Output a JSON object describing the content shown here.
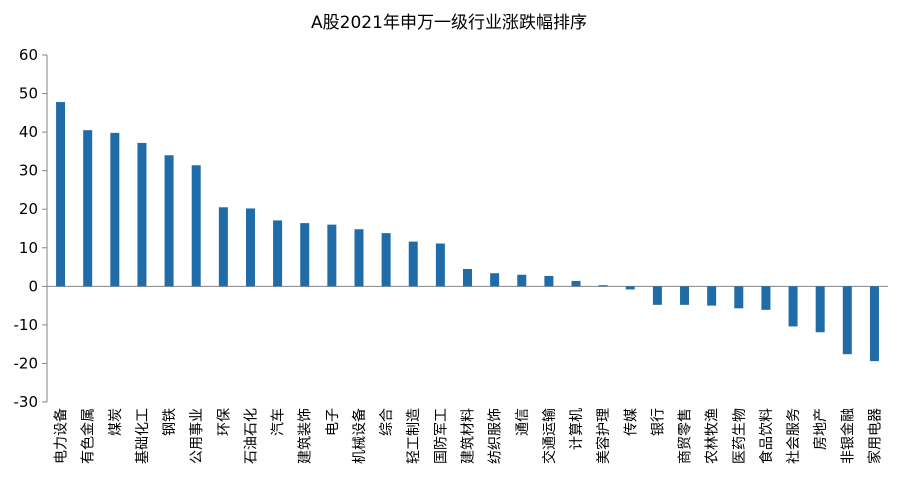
{
  "chart_data": {
    "type": "bar",
    "title": "A股2021年申万一级行业涨跌幅排序",
    "xlabel": "",
    "ylabel": "",
    "ylim": [
      -30,
      60
    ],
    "yticks": [
      60,
      50,
      40,
      30,
      20,
      10,
      0,
      -10,
      -20,
      -30
    ],
    "grid": false,
    "legend": "none",
    "bar_color": "#1F6CA8",
    "categories": [
      "电力设备",
      "有色金属",
      "煤炭",
      "基础化工",
      "钢铁",
      "公用事业",
      "环保",
      "石油石化",
      "汽车",
      "建筑装饰",
      "电子",
      "机械设备",
      "综合",
      "轻工制造",
      "国防军工",
      "建筑材料",
      "纺织服饰",
      "通信",
      "交通运输",
      "计算机",
      "美容护理",
      "传媒",
      "银行",
      "商贸零售",
      "农林牧渔",
      "医药生物",
      "食品饮料",
      "社会服务",
      "房地产",
      "非银金融",
      "家用电器"
    ],
    "values": [
      47.8,
      40.5,
      39.8,
      37.2,
      34.0,
      31.4,
      20.5,
      20.2,
      17.1,
      16.4,
      16.0,
      14.8,
      13.8,
      11.6,
      11.1,
      4.5,
      3.4,
      3.0,
      2.7,
      1.4,
      0.3,
      -0.8,
      -4.8,
      -4.8,
      -5.0,
      -5.7,
      -6.1,
      -10.4,
      -11.9,
      -17.6,
      -19.4
    ]
  }
}
